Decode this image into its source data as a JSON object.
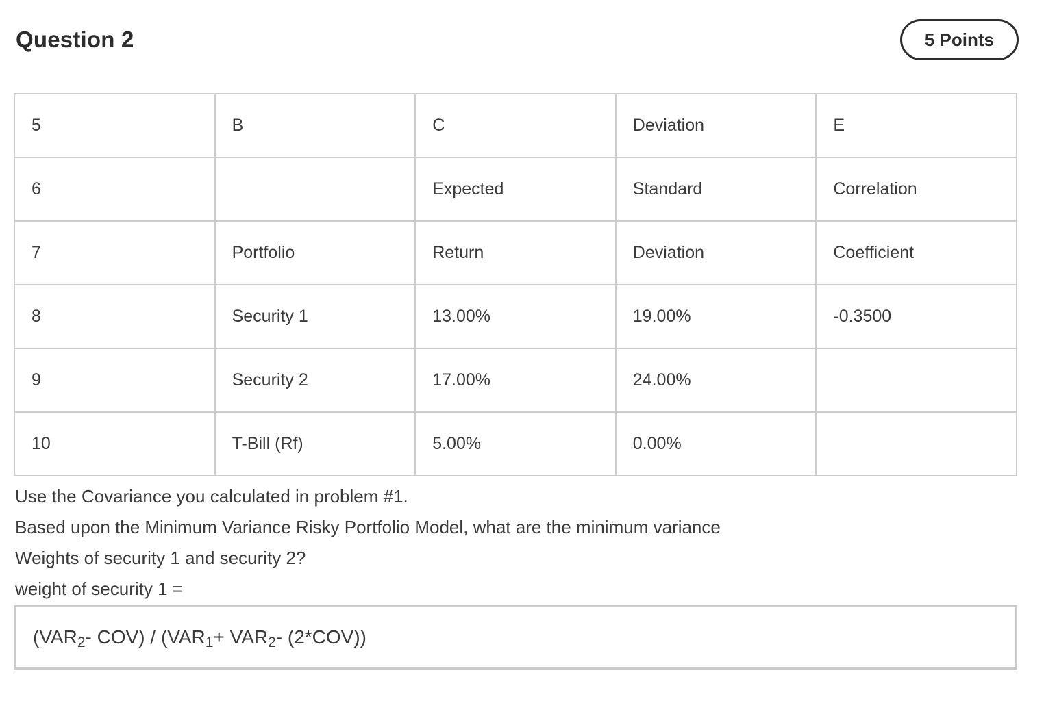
{
  "header": {
    "title": "Question 2",
    "points_label": "5 Points"
  },
  "table": {
    "rows": [
      {
        "cells": [
          "5",
          "B",
          "C",
          "Deviation",
          "E"
        ]
      },
      {
        "cells": [
          "6",
          "",
          "Expected",
          "Standard",
          "Correlation"
        ]
      },
      {
        "cells": [
          "7",
          "Portfolio",
          "Return",
          "Deviation",
          "Coefficient"
        ]
      },
      {
        "cells": [
          "8",
          "Security 1",
          "13.00%",
          "19.00%",
          "-0.3500"
        ]
      },
      {
        "cells": [
          "9",
          "Security 2",
          "17.00%",
          "24.00%",
          ""
        ]
      },
      {
        "cells": [
          "10",
          "T-Bill (Rf)",
          "5.00%",
          "0.00%",
          ""
        ]
      }
    ]
  },
  "question": {
    "lines": [
      "Use the Covariance you calculated in problem #1.",
      "Based upon the Minimum Variance Risky Portfolio Model, what are the minimum variance",
      "Weights of security 1 and security 2?",
      "weight of security 1 ="
    ]
  },
  "answer": {
    "formula_segments": [
      {
        "text": "(VAR"
      },
      {
        "text": "2"
      },
      {
        "text": "- COV) / (VAR"
      },
      {
        "text": "1"
      },
      {
        "text": "+ VAR"
      },
      {
        "text": "2"
      },
      {
        "text": "- (2*COV))"
      }
    ]
  },
  "colors": {
    "text": "#3b3b3b",
    "heading": "#2d2d2d",
    "table_border": "#cccccc",
    "answer_border": "#cbcbcb",
    "badge_border": "#2d2d2d",
    "background": "#ffffff"
  }
}
